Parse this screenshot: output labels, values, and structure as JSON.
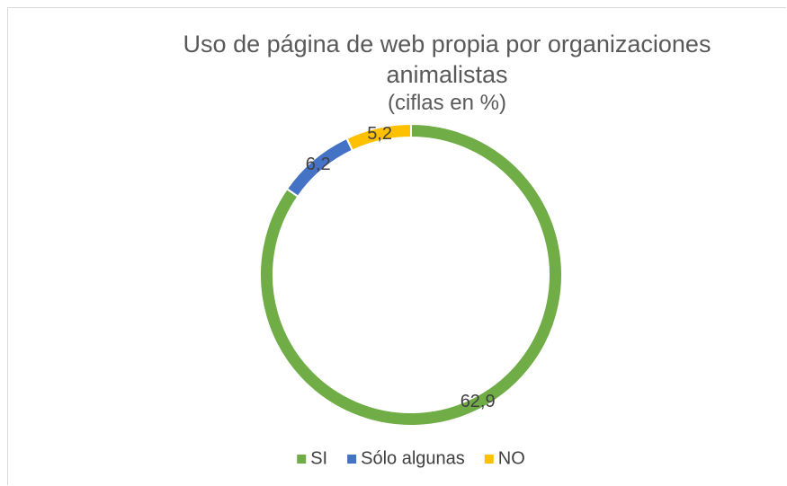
{
  "chart_data": {
    "type": "donut",
    "title": "Uso de página de web propia por organizaciones animalistas",
    "subtitle": "(ciflas en %)",
    "categories": [
      "SI",
      "Sólo algunas",
      "NO"
    ],
    "values": [
      62.9,
      6.2,
      5.2
    ],
    "value_labels": [
      "62,9",
      "6,2",
      "5,2"
    ],
    "colors": [
      "#70ad47",
      "#4472c4",
      "#ffc000"
    ],
    "legend": "bottom"
  }
}
